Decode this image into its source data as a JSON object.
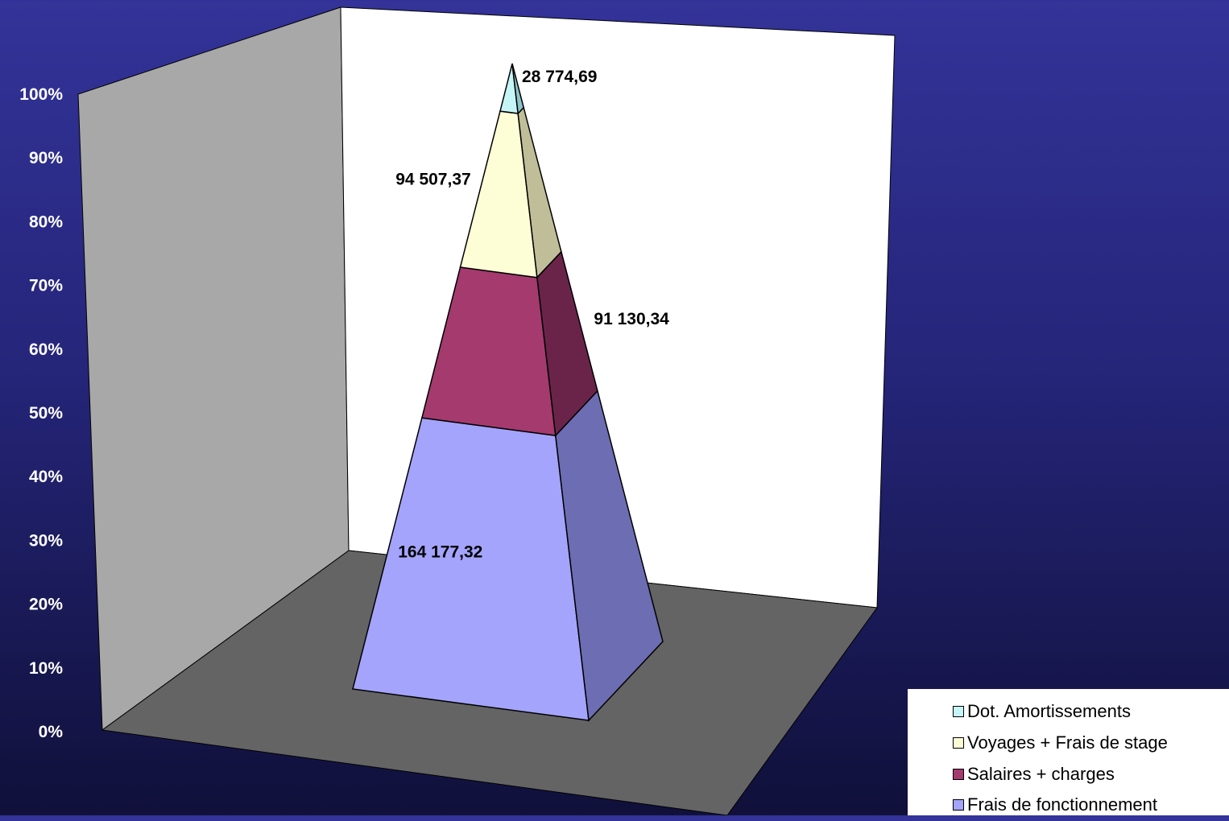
{
  "chart_data": {
    "type": "pyramid-stacked-100",
    "title": "",
    "xlabel": "",
    "ylabel": "",
    "ylim": [
      0,
      100
    ],
    "y_ticks": [
      "0%",
      "10%",
      "20%",
      "30%",
      "40%",
      "50%",
      "60%",
      "70%",
      "80%",
      "90%",
      "100%"
    ],
    "grid": false,
    "legend_position": "bottom-right",
    "series": [
      {
        "name": "Frais de fonctionnement",
        "value": 164177.32,
        "label": "164 177,32",
        "color": "#a4a4fc",
        "side_color": "#6d6db4"
      },
      {
        "name": "Salaires + charges",
        "value": 91130.34,
        "label": "91 130,34",
        "color": "#a43a6e",
        "side_color": "#6a2449"
      },
      {
        "name": "Voyages + Frais de stage",
        "value": 94507.37,
        "label": "94 507,37",
        "color": "#fefed6",
        "side_color": "#c0be98"
      },
      {
        "name": "Dot. Amortissements",
        "value": 28774.69,
        "label": "28 774,69",
        "color": "#c6f5f8",
        "side_color": "#8ac4c8"
      }
    ],
    "legend_order": [
      "Dot. Amortissements",
      "Voyages + Frais de stage",
      "Salaires + charges",
      "Frais de fonctionnement"
    ],
    "colors": {
      "back_wall": "#ffffff",
      "side_wall": "#a8a8a8",
      "floor": "#646464"
    }
  }
}
